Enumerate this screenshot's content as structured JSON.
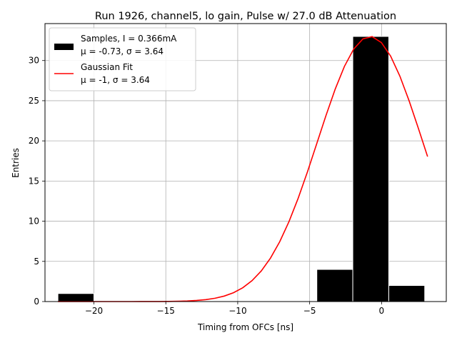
{
  "chart_data": {
    "type": "bar",
    "title": "Run 1926, channel5, lo gain, Pulse w/ 27.0 dB Attenuation",
    "xlabel": "Timing from OFCs [ns]",
    "ylabel": "Entries",
    "xlim": [
      -23.4,
      4.5
    ],
    "ylim": [
      0,
      34.6
    ],
    "grid": true,
    "legend_position": "upper-left",
    "x_ticks": [
      -20,
      -15,
      -10,
      -5,
      0
    ],
    "x_tick_labels": [
      "−20",
      "−15",
      "−10",
      "−5",
      "0"
    ],
    "y_ticks": [
      0,
      5,
      10,
      15,
      20,
      25,
      30
    ],
    "y_tick_labels": [
      "0",
      "5",
      "10",
      "15",
      "20",
      "25",
      "30"
    ],
    "histogram": {
      "name_line1": "Samples, I = 0.366mA",
      "name_line2": "μ = -0.73, σ = 3.64",
      "color": "#000000",
      "edge_color": "#ffffff",
      "bins": [
        {
          "x0": -22.5,
          "x1": -20.0,
          "value": 1
        },
        {
          "x0": -4.5,
          "x1": -2.0,
          "value": 4
        },
        {
          "x0": -2.0,
          "x1": 0.5,
          "value": 33
        },
        {
          "x0": 0.5,
          "x1": 3.0,
          "value": 2
        }
      ]
    },
    "fit": {
      "name_line1": "Gaussian Fit",
      "name_line2": "μ = -1, σ = 3.64",
      "color": "#ff0000",
      "type": "gaussian",
      "amplitude": 33,
      "mean": -0.8,
      "sigma": 3.64,
      "x_range": [
        -22.5,
        3.2
      ]
    }
  }
}
